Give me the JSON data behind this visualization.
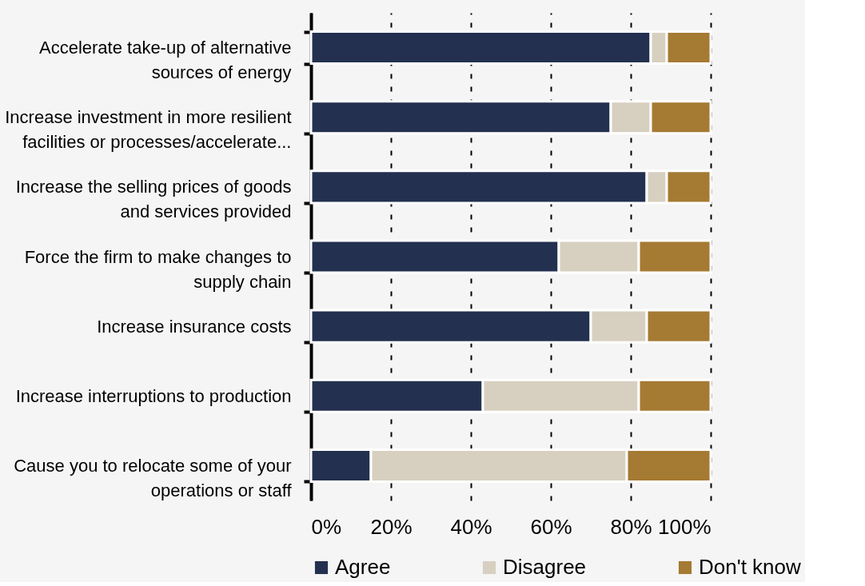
{
  "chart_data": {
    "type": "bar",
    "orientation": "horizontal",
    "stacked": true,
    "categories": [
      "Accelerate take-up of alternative sources of energy",
      "Increase investment in more resilient facilities or processes/accelerate...",
      "Increase the selling prices of goods and services provided",
      "Force the firm to make changes to supply chain",
      "Increase insurance costs",
      "Increase interruptions to production",
      "Cause you to relocate some of your operations or staff"
    ],
    "series": [
      {
        "name": "Agree",
        "color": "#23304f",
        "values": [
          85,
          75,
          84,
          62,
          70,
          43,
          15
        ]
      },
      {
        "name": "Disagree",
        "color": "#d7d0c0",
        "values": [
          4,
          10,
          5,
          20,
          14,
          39,
          64
        ]
      },
      {
        "name": "Don't know",
        "color": "#a57a33",
        "values": [
          11,
          15,
          11,
          18,
          16,
          18,
          21
        ]
      }
    ],
    "xlim": [
      0,
      100
    ],
    "xticks": [
      {
        "value": 0,
        "label": "0%"
      },
      {
        "value": 20,
        "label": "20%"
      },
      {
        "value": 40,
        "label": "40%"
      },
      {
        "value": 60,
        "label": "60%"
      },
      {
        "value": 80,
        "label": "80%"
      },
      {
        "value": 100,
        "label": "100%"
      }
    ],
    "grid": "x",
    "legend": "bottom"
  }
}
